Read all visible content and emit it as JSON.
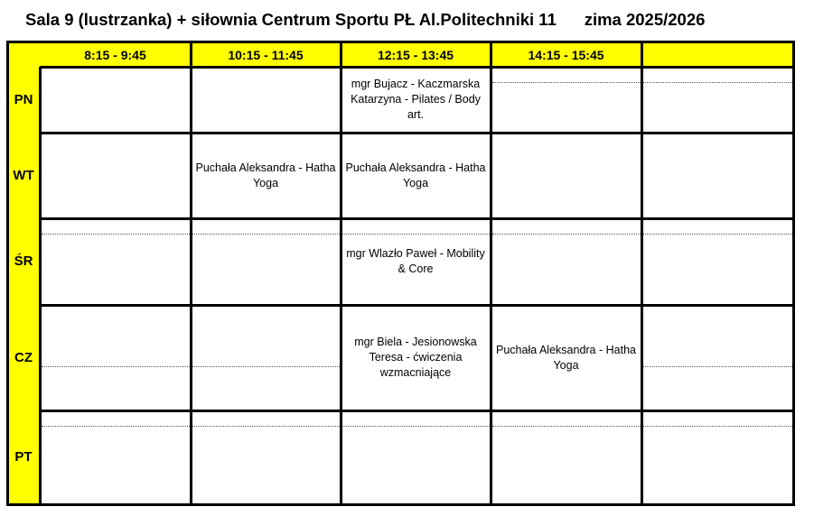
{
  "title": "Sala 9 (lustrzanka) + siłownia Centrum Sportu PŁ Al.Politechniki 11      zima 2025/2026",
  "colors": {
    "header_bg": "#ffff00",
    "border": "#000000"
  },
  "time_slots": [
    "8:15 - 9:45",
    "10:15 - 11:45",
    "12:15 - 13:45",
    "14:15 - 15:45",
    ""
  ],
  "days": [
    {
      "label": "PN",
      "cells": [
        "",
        "",
        "mgr Bujacz - Kaczmarska Katarzyna - Pilates / Body art.",
        "",
        ""
      ]
    },
    {
      "label": "WT",
      "cells": [
        "",
        "Puchała Aleksandra - Hatha Yoga",
        "Puchała Aleksandra - Hatha Yoga",
        "",
        ""
      ]
    },
    {
      "label": "ŚR",
      "cells": [
        "",
        "",
        "mgr Wlazło Paweł - Mobility & Core",
        "",
        ""
      ]
    },
    {
      "label": "CZ",
      "cells": [
        "",
        "",
        "mgr Biela - Jesionowska Teresa - ćwiczenia wzmacniające",
        "Puchała Aleksandra - Hatha Yoga",
        ""
      ]
    },
    {
      "label": "PT",
      "cells": [
        "",
        "",
        "",
        "",
        ""
      ]
    }
  ]
}
